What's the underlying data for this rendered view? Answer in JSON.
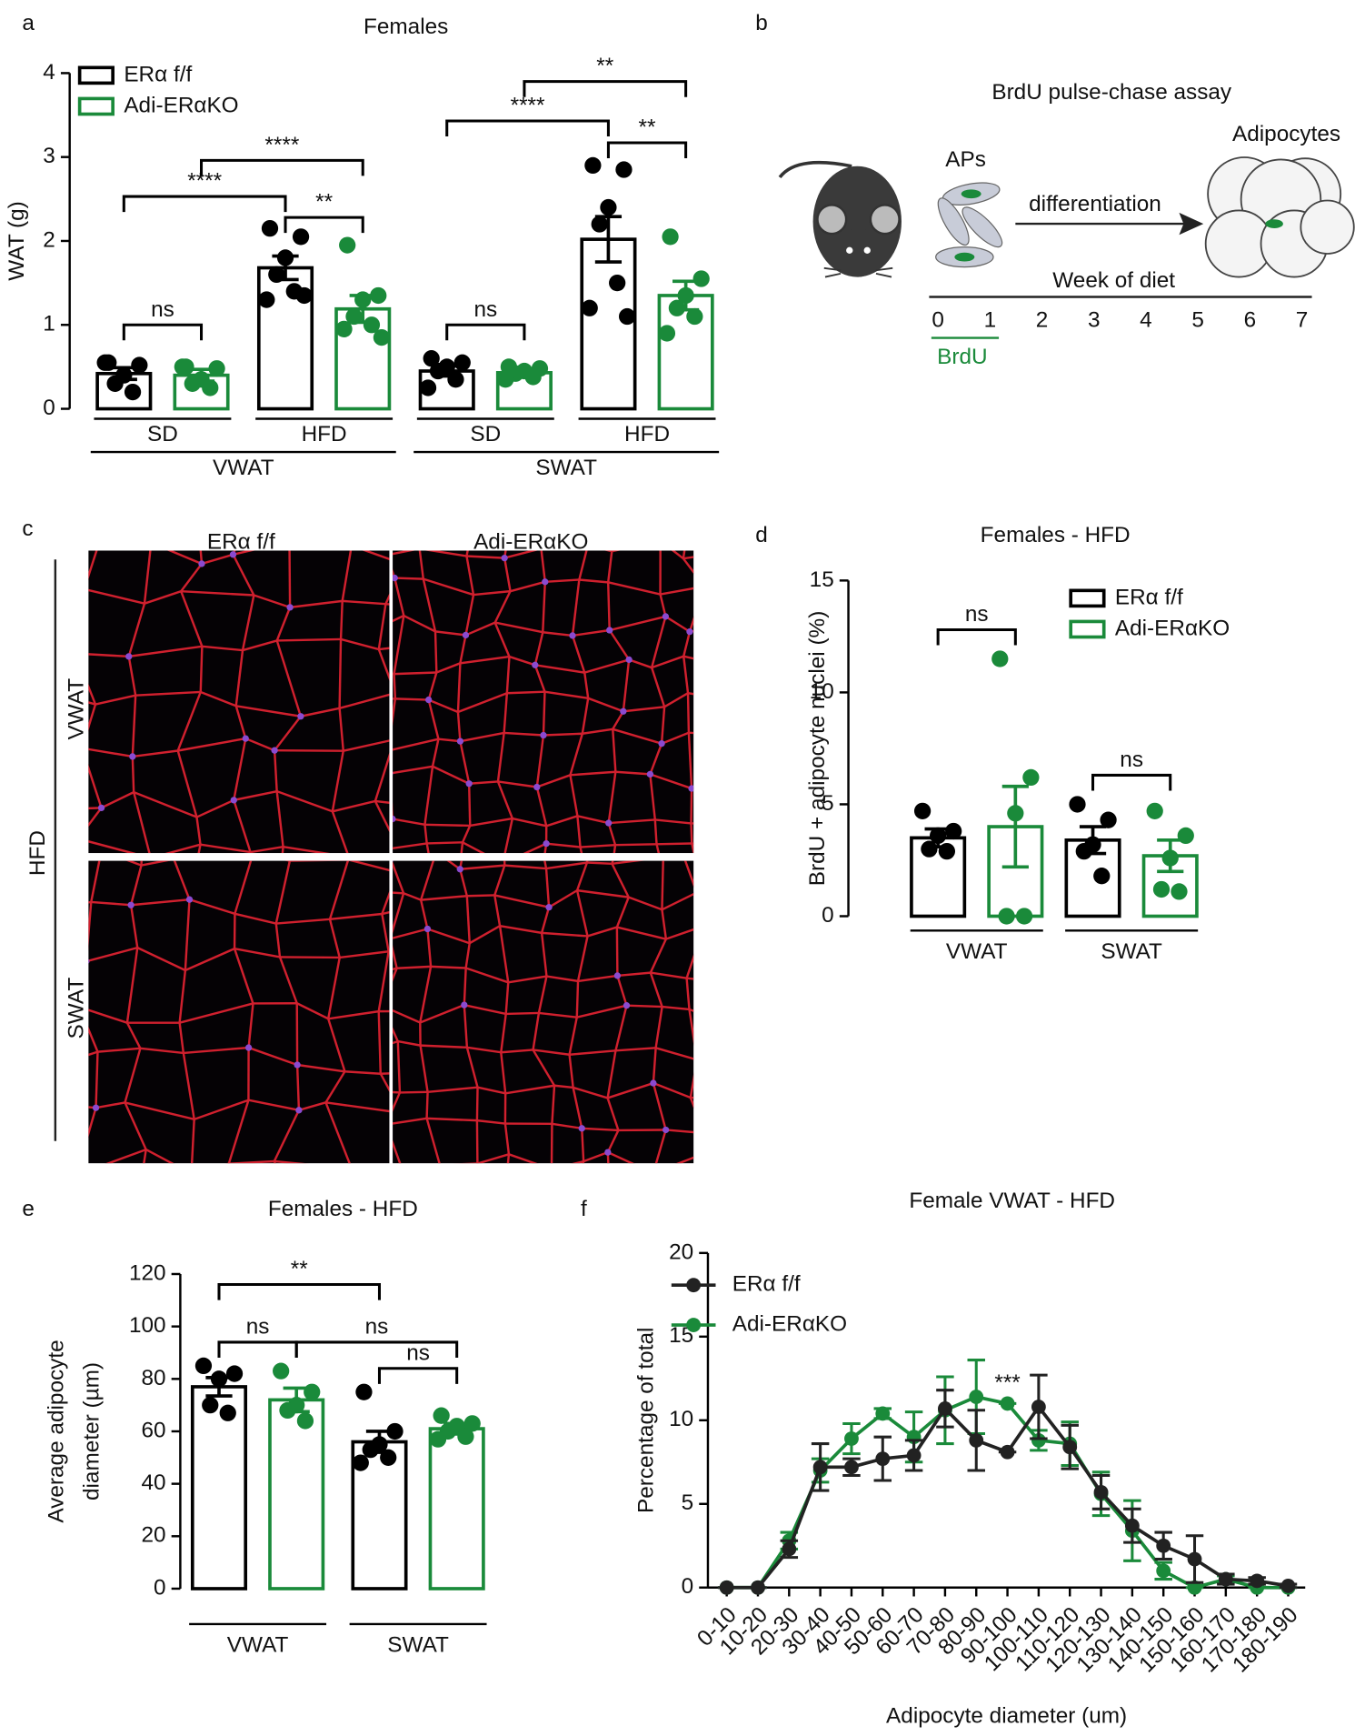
{
  "panel_labels": [
    "a",
    "b",
    "c",
    "d",
    "e",
    "f"
  ],
  "diagram": {
    "title": "BrdU pulse-chase assay",
    "progenitors": "APs",
    "process": "differentiation",
    "product": "Adipocytes",
    "timeline_label": "Week of diet",
    "weeks": [
      0,
      1,
      2,
      3,
      4,
      5,
      6,
      7
    ],
    "label": "BrdU"
  },
  "micrographs": {
    "columns": [
      "ERα f/f",
      "Adi-ERαKO"
    ],
    "rows": [
      "VWAT",
      "SWAT"
    ],
    "condition": "HFD"
  },
  "chart_data": [
    {
      "type": "bar",
      "title": "Females",
      "ylabel": "WAT  (g)",
      "ylim": [
        0,
        4
      ],
      "yticks": [
        0,
        1,
        2,
        3,
        4
      ],
      "groups": [
        {
          "name": "VWAT",
          "categories": [
            "SD",
            "HFD"
          ]
        },
        {
          "name": "SWAT",
          "categories": [
            "SD",
            "HFD"
          ]
        }
      ],
      "series": [
        {
          "name": "ERα f/f",
          "color": "#000000",
          "values": [
            0.42,
            1.68,
            0.45,
            2.02
          ],
          "errors": [
            0.07,
            0.14,
            0.06,
            0.27
          ],
          "points": [
            [
              0.55,
              0.52,
              0.4,
              0.3,
              0.2,
              0.55
            ],
            [
              2.15,
              2.05,
              1.8,
              1.6,
              1.4,
              1.3,
              1.35
            ],
            [
              0.6,
              0.55,
              0.5,
              0.45,
              0.35,
              0.25
            ],
            [
              2.9,
              2.85,
              2.4,
              2.2,
              1.5,
              1.2,
              1.1
            ]
          ]
        },
        {
          "name": "Adi-ERαKO",
          "color": "#1a8a3a",
          "values": [
            0.4,
            1.19,
            0.43,
            1.35
          ],
          "errors": [
            0.07,
            0.16,
            0.04,
            0.17
          ],
          "points": [
            [
              0.5,
              0.48,
              0.35,
              0.3,
              0.25,
              0.5
            ],
            [
              1.95,
              1.35,
              1.3,
              1.1,
              1.0,
              0.95,
              0.85
            ],
            [
              0.5,
              0.48,
              0.45,
              0.42,
              0.38,
              0.35
            ],
            [
              2.05,
              1.55,
              1.35,
              1.2,
              1.1,
              0.9
            ]
          ]
        }
      ],
      "comparisons": [
        {
          "label": "ns",
          "y": 1.0,
          "from": [
            0,
            0
          ],
          "to": [
            1,
            0
          ]
        },
        {
          "label": "****",
          "y": 2.53,
          "from": [
            0,
            0
          ],
          "to": [
            0,
            1
          ]
        },
        {
          "label": "****",
          "y": 2.96,
          "from": [
            1,
            0
          ],
          "to": [
            1,
            1
          ]
        },
        {
          "label": "**",
          "y": 2.28,
          "from": [
            0,
            1
          ],
          "to": [
            1,
            1
          ]
        },
        {
          "label": "ns",
          "y": 1.0,
          "from": [
            0,
            2
          ],
          "to": [
            1,
            2
          ]
        },
        {
          "label": "****",
          "y": 3.43,
          "from": [
            0,
            2
          ],
          "to": [
            0,
            3
          ]
        },
        {
          "label": "**",
          "y": 3.9,
          "from": [
            1,
            2
          ],
          "to": [
            1,
            3
          ]
        },
        {
          "label": "**",
          "y": 3.17,
          "from": [
            0,
            3
          ],
          "to": [
            1,
            3
          ]
        }
      ]
    },
    {
      "type": "bar",
      "title": "Females - HFD",
      "ylabel": "BrdU + adipocyte nuclei (%)",
      "ylim": [
        0,
        15
      ],
      "yticks": [
        0,
        5,
        10,
        15
      ],
      "categories": [
        "VWAT",
        "SWAT"
      ],
      "series": [
        {
          "name": "ERα f/f",
          "color": "#000000",
          "values": [
            3.5,
            3.4
          ],
          "errors": [
            0.4,
            0.6
          ],
          "points": [
            [
              4.7,
              3.8,
              3.6,
              3.0,
              2.9
            ],
            [
              5.0,
              4.3,
              3.2,
              2.9,
              1.8
            ]
          ]
        },
        {
          "name": "Adi-ERαKO",
          "color": "#1a8a3a",
          "values": [
            4.0,
            2.7
          ],
          "errors": [
            1.8,
            0.7
          ],
          "points": [
            [
              11.5,
              6.2,
              4.6,
              0,
              0
            ],
            [
              4.7,
              3.6,
              2.6,
              1.2,
              1.1
            ]
          ]
        }
      ],
      "comparisons": [
        {
          "label": "ns",
          "y": 12.8,
          "from": [
            0,
            0
          ],
          "to": [
            1,
            0
          ]
        },
        {
          "label": "ns",
          "y": 6.3,
          "from": [
            0,
            1
          ],
          "to": [
            1,
            1
          ]
        }
      ]
    },
    {
      "type": "bar",
      "title": "Females -  HFD",
      "ylabel": [
        "Average adipocyte",
        "diameter (µm)"
      ],
      "ylim": [
        0,
        120
      ],
      "yticks": [
        0,
        20,
        40,
        60,
        80,
        100,
        120
      ],
      "categories": [
        "VWAT",
        "SWAT"
      ],
      "series": [
        {
          "name": "ERα f/f",
          "color": "#000000",
          "values": [
            77,
            56
          ],
          "errors": [
            3.5,
            4
          ],
          "points": [
            [
              85,
              82,
              80,
              70,
              67
            ],
            [
              75,
              60,
              55,
              53,
              50,
              48
            ]
          ]
        },
        {
          "name": "Adi-ERαKO",
          "color": "#1a8a3a",
          "values": [
            72,
            61
          ],
          "errors": [
            4.5,
            2
          ],
          "points": [
            [
              83,
              75,
              70,
              68,
              64
            ],
            [
              66,
              63,
              62,
              60,
              58,
              57
            ]
          ]
        }
      ],
      "comparisons": [
        {
          "label": "**",
          "y": 116,
          "from": [
            0,
            0
          ],
          "to": [
            0,
            1
          ]
        },
        {
          "label": "ns",
          "y": 94,
          "from": [
            0,
            0
          ],
          "to": [
            1,
            0
          ]
        },
        {
          "label": "ns",
          "y": 94,
          "from": [
            1,
            0
          ],
          "to": [
            1,
            1
          ]
        },
        {
          "label": "ns",
          "y": 84,
          "from": [
            0,
            1
          ],
          "to": [
            1,
            1
          ]
        }
      ]
    },
    {
      "type": "line",
      "title": "Female VWAT - HFD",
      "ylabel": "Percentage of total",
      "xlabel": "Adipocyte diameter (um)",
      "ylim": [
        0,
        20
      ],
      "yticks": [
        0,
        5,
        10,
        15,
        20
      ],
      "categories": [
        "0-10",
        "10-20",
        "20-30",
        "30-40",
        "40-50",
        "50-60",
        "60-70",
        "70-80",
        "80-90",
        "90-100",
        "100-110",
        "110-120",
        "120-130",
        "130-140",
        "140-150",
        "150-160",
        "160-170",
        "170-180",
        "180-190"
      ],
      "series": [
        {
          "name": "ERα f/f",
          "color": "#222222",
          "values": [
            0,
            0,
            2.3,
            7.2,
            7.2,
            7.7,
            7.9,
            10.7,
            8.8,
            8.1,
            10.8,
            8.4,
            5.7,
            3.7,
            2.5,
            1.7,
            0.5,
            0.4,
            0.1
          ],
          "errors": [
            0,
            0,
            0.5,
            1.4,
            0.5,
            1.3,
            0.9,
            1.1,
            1.8,
            0,
            1.9,
            1.3,
            1.0,
            1.0,
            0.8,
            1.4,
            0.3,
            0.2,
            0.1
          ]
        },
        {
          "name": "Adi-ERαKO",
          "color": "#1a8a3a",
          "values": [
            0,
            0,
            2.8,
            7.0,
            8.9,
            10.4,
            9.0,
            10.6,
            11.4,
            11.0,
            8.8,
            8.6,
            5.6,
            3.4,
            1.0,
            0,
            0.5,
            0,
            0
          ],
          "errors": [
            0,
            0,
            0.5,
            0.7,
            0.9,
            0.3,
            1.5,
            2.0,
            2.2,
            0,
            0.6,
            1.3,
            1.3,
            1.8,
            0.5,
            0,
            0.2,
            0,
            0
          ]
        }
      ],
      "annotations": [
        {
          "text": "***",
          "at": 9,
          "y": 12.2
        }
      ]
    }
  ]
}
